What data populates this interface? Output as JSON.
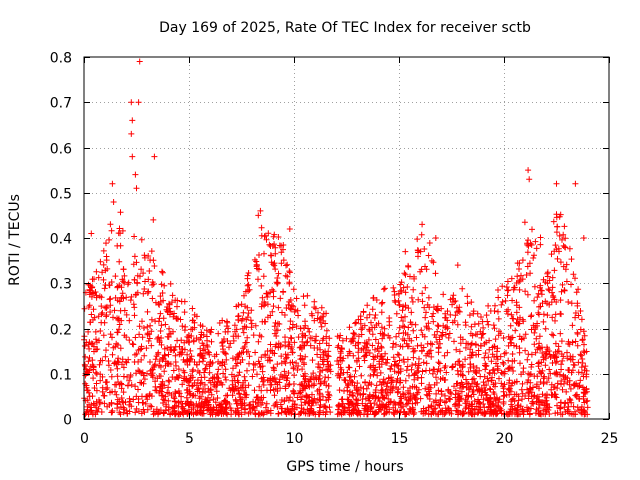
{
  "chart_data": {
    "type": "scatter",
    "title": "Day 169 of 2025, Rate Of TEC Index for receiver sctb",
    "xlabel": "GPS time / hours",
    "ylabel": "ROTI / TECUs",
    "xlim": [
      0,
      25
    ],
    "ylim": [
      0,
      0.8
    ],
    "x_ticks": [
      "0",
      "5",
      "10",
      "15",
      "20",
      "25"
    ],
    "y_ticks": [
      "0",
      "0.1",
      "0.2",
      "0.3",
      "0.4",
      "0.5",
      "0.6",
      "0.7",
      "0.8"
    ],
    "grid": true,
    "marker": "+",
    "color": "#ff0000",
    "series": [
      {
        "values_profile_hours": [
          0,
          0.5,
          1,
          1.5,
          2,
          2.5,
          3,
          3.5,
          4,
          4.5,
          5,
          5.5,
          6,
          6.5,
          7,
          7.5,
          8,
          8.5,
          9,
          9.5,
          10,
          10.5,
          11,
          11.5,
          12,
          12.5,
          13,
          13.5,
          14,
          14.5,
          15,
          15.5,
          16,
          16.5,
          17,
          17.5,
          18,
          18.5,
          19,
          19.5,
          20,
          20.5,
          21,
          21.5,
          22,
          22.5,
          23,
          23.5,
          24
        ],
        "values_profile_upper": [
          0.3,
          0.32,
          0.4,
          0.5,
          0.42,
          0.4,
          0.42,
          0.35,
          0.3,
          0.3,
          0.26,
          0.22,
          0.2,
          0.22,
          0.22,
          0.28,
          0.35,
          0.44,
          0.42,
          0.42,
          0.3,
          0.28,
          0.26,
          0.24,
          0.18,
          0.2,
          0.22,
          0.26,
          0.28,
          0.3,
          0.3,
          0.35,
          0.42,
          0.4,
          0.3,
          0.28,
          0.3,
          0.26,
          0.24,
          0.28,
          0.3,
          0.32,
          0.48,
          0.44,
          0.36,
          0.48,
          0.42,
          0.3,
          0.14
        ],
        "outliers": [
          {
            "x": 2.65,
            "y": 0.79
          },
          {
            "x": 2.25,
            "y": 0.7
          },
          {
            "x": 2.6,
            "y": 0.7
          },
          {
            "x": 2.3,
            "y": 0.66
          },
          {
            "x": 2.25,
            "y": 0.63
          },
          {
            "x": 2.3,
            "y": 0.58
          },
          {
            "x": 3.35,
            "y": 0.58
          },
          {
            "x": 2.45,
            "y": 0.54
          },
          {
            "x": 2.5,
            "y": 0.51
          },
          {
            "x": 1.35,
            "y": 0.52
          },
          {
            "x": 21.15,
            "y": 0.55
          },
          {
            "x": 21.2,
            "y": 0.53
          },
          {
            "x": 22.5,
            "y": 0.52
          },
          {
            "x": 23.4,
            "y": 0.52
          },
          {
            "x": 8.4,
            "y": 0.46
          },
          {
            "x": 8.3,
            "y": 0.45
          },
          {
            "x": 16.1,
            "y": 0.43
          },
          {
            "x": 16.75,
            "y": 0.4
          },
          {
            "x": 0.35,
            "y": 0.41
          },
          {
            "x": 3.3,
            "y": 0.44
          },
          {
            "x": 9.8,
            "y": 0.42
          },
          {
            "x": 23.8,
            "y": 0.4
          },
          {
            "x": 17.8,
            "y": 0.34
          },
          {
            "x": 15.3,
            "y": 0.37
          }
        ]
      }
    ]
  }
}
